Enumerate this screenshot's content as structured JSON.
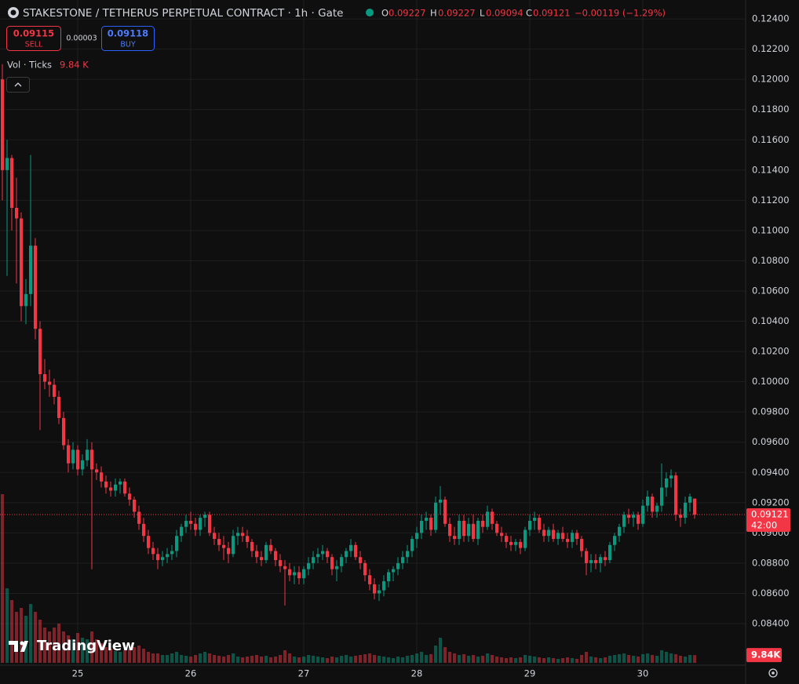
{
  "chart_data": {
    "type": "candlestick",
    "title": "STAKESTONE / TETHERUS PERPETUAL CONTRACT · 1h · Gate",
    "ohlc_labels": [
      "O",
      "H",
      "L",
      "C"
    ],
    "change": "−0.00119 (−1.29%)",
    "sell": {
      "price": 0.09115,
      "label": "SELL"
    },
    "spread": 3e-05,
    "buy": {
      "price": 0.09118,
      "label": "BUY"
    },
    "volume_title": "Vol · Ticks",
    "volume_legend": "9.84 K",
    "volume_axis_label": "9.84K",
    "countdown": "42:00",
    "logo": "TradingView",
    "up_color": "#089981",
    "down_color": "#f23645",
    "grid": true,
    "ylim": [
      0.08125,
      0.12525
    ],
    "yticks": [
      {
        "value": 0.124,
        "label": "0.12400"
      },
      {
        "value": 0.122,
        "label": "0.12200"
      },
      {
        "value": 0.12,
        "label": "0.12000"
      },
      {
        "value": 0.118,
        "label": "0.11800"
      },
      {
        "value": 0.116,
        "label": "0.11600"
      },
      {
        "value": 0.114,
        "label": "0.11400"
      },
      {
        "value": 0.112,
        "label": "0.11200"
      },
      {
        "value": 0.11,
        "label": "0.11000"
      },
      {
        "value": 0.108,
        "label": "0.10800"
      },
      {
        "value": 0.106,
        "label": "0.10600"
      },
      {
        "value": 0.104,
        "label": "0.10400"
      },
      {
        "value": 0.102,
        "label": "0.10200"
      },
      {
        "value": 0.1,
        "label": "0.10000"
      },
      {
        "value": 0.098,
        "label": "0.09800"
      },
      {
        "value": 0.096,
        "label": "0.09600"
      },
      {
        "value": 0.094,
        "label": "0.09400"
      },
      {
        "value": 0.092,
        "label": "0.09200"
      },
      {
        "value": 0.09,
        "label": "0.09000"
      },
      {
        "value": 0.088,
        "label": "0.08800"
      },
      {
        "value": 0.086,
        "label": "0.08600"
      },
      {
        "value": 0.084,
        "label": "0.08400"
      }
    ],
    "volume_ylim": [
      0,
      220
    ],
    "categories": [
      null,
      null,
      null,
      null,
      null,
      null,
      null,
      null,
      null,
      null,
      null,
      null,
      null,
      null,
      null,
      null,
      "25",
      null,
      null,
      null,
      null,
      null,
      null,
      null,
      null,
      null,
      null,
      null,
      null,
      null,
      null,
      null,
      null,
      null,
      null,
      null,
      null,
      null,
      null,
      null,
      "26",
      null,
      null,
      null,
      null,
      null,
      null,
      null,
      null,
      null,
      null,
      null,
      null,
      null,
      null,
      null,
      null,
      null,
      null,
      null,
      null,
      null,
      null,
      null,
      "27",
      null,
      null,
      null,
      null,
      null,
      null,
      null,
      null,
      null,
      null,
      null,
      null,
      null,
      null,
      null,
      null,
      null,
      null,
      null,
      null,
      null,
      null,
      null,
      "28",
      null,
      null,
      null,
      null,
      null,
      null,
      null,
      null,
      null,
      null,
      null,
      null,
      null,
      null,
      null,
      null,
      null,
      null,
      null,
      null,
      null,
      null,
      null,
      "29",
      null,
      null,
      null,
      null,
      null,
      null,
      null,
      null,
      null,
      null,
      null,
      null,
      null,
      null,
      null,
      null,
      null,
      null,
      null,
      null,
      null,
      null,
      null,
      "30",
      null,
      null,
      null,
      null,
      null,
      null,
      null,
      null,
      null,
      null,
      null
    ],
    "candles": [
      [
        0.12,
        0.121,
        0.112,
        0.114
      ],
      [
        0.114,
        0.116,
        0.107,
        0.1148
      ],
      [
        0.1148,
        0.115,
        0.11,
        0.1115
      ],
      [
        0.1115,
        0.1135,
        0.1065,
        0.1108
      ],
      [
        0.1108,
        0.1112,
        0.104,
        0.105
      ],
      [
        0.105,
        0.1068,
        0.1038,
        0.1058
      ],
      [
        0.1058,
        0.115,
        0.105,
        0.109
      ],
      [
        0.109,
        0.1095,
        0.1028,
        0.1035
      ],
      [
        0.1035,
        0.104,
        0.0968,
        0.1005
      ],
      [
        0.1005,
        0.1015,
        0.0995,
        0.1
      ],
      [
        0.1,
        0.1008,
        0.099,
        0.0998
      ],
      [
        0.0998,
        0.1002,
        0.0985,
        0.099
      ],
      [
        0.099,
        0.0994,
        0.0972,
        0.0976
      ],
      [
        0.0976,
        0.098,
        0.0955,
        0.0958
      ],
      [
        0.0958,
        0.0962,
        0.094,
        0.0946
      ],
      [
        0.0946,
        0.096,
        0.0942,
        0.0955
      ],
      [
        0.0955,
        0.0958,
        0.0938,
        0.0942
      ],
      [
        0.0942,
        0.0952,
        0.0938,
        0.0948
      ],
      [
        0.0948,
        0.0962,
        0.0944,
        0.0955
      ],
      [
        0.0955,
        0.096,
        0.0876,
        0.0942
      ],
      [
        0.0942,
        0.0946,
        0.0935,
        0.094
      ],
      [
        0.094,
        0.0944,
        0.093,
        0.0934
      ],
      [
        0.0934,
        0.0938,
        0.0926,
        0.093
      ],
      [
        0.093,
        0.0934,
        0.0924,
        0.0928
      ],
      [
        0.0928,
        0.0936,
        0.0924,
        0.0932
      ],
      [
        0.0932,
        0.0936,
        0.0926,
        0.0934
      ],
      [
        0.0934,
        0.0936,
        0.0924,
        0.0926
      ],
      [
        0.0926,
        0.093,
        0.0918,
        0.0922
      ],
      [
        0.0922,
        0.0924,
        0.091,
        0.0914
      ],
      [
        0.0914,
        0.0918,
        0.0902,
        0.0906
      ],
      [
        0.0906,
        0.091,
        0.0894,
        0.0898
      ],
      [
        0.0898,
        0.0902,
        0.0886,
        0.089
      ],
      [
        0.089,
        0.0894,
        0.0882,
        0.0886
      ],
      [
        0.0886,
        0.089,
        0.0876,
        0.0882
      ],
      [
        0.0882,
        0.0888,
        0.0878,
        0.0884
      ],
      [
        0.0884,
        0.089,
        0.088,
        0.0886
      ],
      [
        0.0886,
        0.0892,
        0.0882,
        0.0888
      ],
      [
        0.0888,
        0.0902,
        0.0884,
        0.0898
      ],
      [
        0.0898,
        0.0906,
        0.0894,
        0.0904
      ],
      [
        0.0904,
        0.0912,
        0.09,
        0.0908
      ],
      [
        0.0908,
        0.0914,
        0.0902,
        0.0906
      ],
      [
        0.0906,
        0.091,
        0.0898,
        0.0902
      ],
      [
        0.0902,
        0.0912,
        0.0898,
        0.091
      ],
      [
        0.091,
        0.0914,
        0.0904,
        0.0912
      ],
      [
        0.0912,
        0.0914,
        0.0898,
        0.09
      ],
      [
        0.09,
        0.0904,
        0.0892,
        0.0896
      ],
      [
        0.0896,
        0.09,
        0.0888,
        0.0892
      ],
      [
        0.0892,
        0.0898,
        0.0882,
        0.089
      ],
      [
        0.089,
        0.0894,
        0.088,
        0.0886
      ],
      [
        0.0886,
        0.0902,
        0.0884,
        0.0898
      ],
      [
        0.0898,
        0.0904,
        0.0892,
        0.09
      ],
      [
        0.09,
        0.0904,
        0.0894,
        0.0898
      ],
      [
        0.0898,
        0.0902,
        0.089,
        0.0894
      ],
      [
        0.0894,
        0.0896,
        0.0884,
        0.0888
      ],
      [
        0.0888,
        0.0892,
        0.088,
        0.0884
      ],
      [
        0.0884,
        0.0888,
        0.0878,
        0.0882
      ],
      [
        0.0882,
        0.0894,
        0.088,
        0.0892
      ],
      [
        0.0892,
        0.0896,
        0.0886,
        0.0888
      ],
      [
        0.0888,
        0.089,
        0.0878,
        0.0882
      ],
      [
        0.0882,
        0.0886,
        0.0874,
        0.0878
      ],
      [
        0.0878,
        0.0882,
        0.0852,
        0.0876
      ],
      [
        0.0876,
        0.088,
        0.0868,
        0.0872
      ],
      [
        0.0872,
        0.0878,
        0.0866,
        0.0874
      ],
      [
        0.0874,
        0.0878,
        0.0866,
        0.087
      ],
      [
        0.087,
        0.0878,
        0.0866,
        0.0876
      ],
      [
        0.0876,
        0.0884,
        0.0872,
        0.088
      ],
      [
        0.088,
        0.0888,
        0.0876,
        0.0884
      ],
      [
        0.0884,
        0.089,
        0.088,
        0.0886
      ],
      [
        0.0886,
        0.0892,
        0.0882,
        0.0888
      ],
      [
        0.0888,
        0.089,
        0.088,
        0.0884
      ],
      [
        0.0884,
        0.0886,
        0.0872,
        0.0876
      ],
      [
        0.0876,
        0.0882,
        0.0868,
        0.0878
      ],
      [
        0.0878,
        0.0886,
        0.0874,
        0.0884
      ],
      [
        0.0884,
        0.089,
        0.088,
        0.0888
      ],
      [
        0.0888,
        0.0896,
        0.0884,
        0.0892
      ],
      [
        0.0892,
        0.0894,
        0.0882,
        0.0884
      ],
      [
        0.0884,
        0.0888,
        0.0876,
        0.088
      ],
      [
        0.088,
        0.0882,
        0.0868,
        0.0872
      ],
      [
        0.0872,
        0.0876,
        0.0862,
        0.0866
      ],
      [
        0.0866,
        0.087,
        0.0856,
        0.086
      ],
      [
        0.086,
        0.0866,
        0.0855,
        0.0862
      ],
      [
        0.0862,
        0.0872,
        0.0858,
        0.0868
      ],
      [
        0.0868,
        0.0876,
        0.0864,
        0.0874
      ],
      [
        0.0874,
        0.0878,
        0.0868,
        0.0876
      ],
      [
        0.0876,
        0.0884,
        0.0872,
        0.088
      ],
      [
        0.088,
        0.0888,
        0.0876,
        0.0884
      ],
      [
        0.0884,
        0.0892,
        0.088,
        0.0888
      ],
      [
        0.0888,
        0.0898,
        0.0884,
        0.0896
      ],
      [
        0.0896,
        0.0904,
        0.089,
        0.09
      ],
      [
        0.09,
        0.0912,
        0.0896,
        0.0908
      ],
      [
        0.0908,
        0.0914,
        0.0902,
        0.091
      ],
      [
        0.091,
        0.0912,
        0.0898,
        0.0902
      ],
      [
        0.0902,
        0.0924,
        0.09,
        0.092
      ],
      [
        0.092,
        0.0931,
        0.0912,
        0.0922
      ],
      [
        0.0922,
        0.0924,
        0.0904,
        0.0906
      ],
      [
        0.0906,
        0.091,
        0.0894,
        0.0898
      ],
      [
        0.0898,
        0.0904,
        0.0892,
        0.0896
      ],
      [
        0.0896,
        0.0912,
        0.0892,
        0.0908
      ],
      [
        0.0908,
        0.0912,
        0.0894,
        0.0898
      ],
      [
        0.0898,
        0.091,
        0.0894,
        0.0906
      ],
      [
        0.0906,
        0.0912,
        0.0894,
        0.0896
      ],
      [
        0.0896,
        0.091,
        0.0892,
        0.0908
      ],
      [
        0.0908,
        0.0912,
        0.09,
        0.0904
      ],
      [
        0.0904,
        0.0918,
        0.0902,
        0.0914
      ],
      [
        0.0914,
        0.0916,
        0.0902,
        0.0906
      ],
      [
        0.0906,
        0.0908,
        0.0898,
        0.09
      ],
      [
        0.09,
        0.0904,
        0.0894,
        0.0898
      ],
      [
        0.0898,
        0.09,
        0.089,
        0.0894
      ],
      [
        0.0894,
        0.0898,
        0.0888,
        0.0892
      ],
      [
        0.0892,
        0.0896,
        0.0888,
        0.0894
      ],
      [
        0.0894,
        0.0896,
        0.0886,
        0.089
      ],
      [
        0.089,
        0.0904,
        0.0888,
        0.0902
      ],
      [
        0.0902,
        0.0912,
        0.0898,
        0.0908
      ],
      [
        0.0908,
        0.0914,
        0.0902,
        0.091
      ],
      [
        0.091,
        0.0912,
        0.09,
        0.0902
      ],
      [
        0.0902,
        0.0906,
        0.0894,
        0.0898
      ],
      [
        0.0898,
        0.0904,
        0.0894,
        0.0902
      ],
      [
        0.0902,
        0.0906,
        0.0894,
        0.0896
      ],
      [
        0.0896,
        0.0902,
        0.0892,
        0.09
      ],
      [
        0.09,
        0.0904,
        0.0894,
        0.0896
      ],
      [
        0.0896,
        0.09,
        0.089,
        0.0894
      ],
      [
        0.0894,
        0.0902,
        0.089,
        0.09
      ],
      [
        0.09,
        0.0902,
        0.0892,
        0.0896
      ],
      [
        0.0896,
        0.0898,
        0.0884,
        0.0888
      ],
      [
        0.0888,
        0.089,
        0.0872,
        0.088
      ],
      [
        0.088,
        0.0886,
        0.0874,
        0.0882
      ],
      [
        0.0882,
        0.0886,
        0.0876,
        0.088
      ],
      [
        0.088,
        0.0886,
        0.0874,
        0.0884
      ],
      [
        0.0884,
        0.0888,
        0.0878,
        0.0882
      ],
      [
        0.0882,
        0.0894,
        0.088,
        0.0892
      ],
      [
        0.0892,
        0.09,
        0.0888,
        0.0898
      ],
      [
        0.0898,
        0.0906,
        0.0894,
        0.0904
      ],
      [
        0.0904,
        0.0914,
        0.09,
        0.0912
      ],
      [
        0.0912,
        0.0916,
        0.0906,
        0.091
      ],
      [
        0.091,
        0.0914,
        0.0904,
        0.0912
      ],
      [
        0.0912,
        0.0914,
        0.0902,
        0.0906
      ],
      [
        0.0906,
        0.0922,
        0.0904,
        0.0918
      ],
      [
        0.0918,
        0.0928,
        0.0914,
        0.0924
      ],
      [
        0.0924,
        0.0926,
        0.091,
        0.0914
      ],
      [
        0.0914,
        0.092,
        0.091,
        0.0918
      ],
      [
        0.0918,
        0.0946,
        0.0914,
        0.093
      ],
      [
        0.093,
        0.094,
        0.0924,
        0.0936
      ],
      [
        0.0936,
        0.0942,
        0.093,
        0.0938
      ],
      [
        0.0938,
        0.094,
        0.0908,
        0.0912
      ],
      [
        0.0912,
        0.0916,
        0.0904,
        0.091
      ],
      [
        0.091,
        0.0924,
        0.0906,
        0.092
      ],
      [
        0.092,
        0.0926,
        0.0914,
        0.0924
      ],
      [
        0.09227,
        0.09227,
        0.09094,
        0.09121
      ]
    ],
    "volume": [
      215,
      95,
      80,
      65,
      70,
      60,
      75,
      65,
      55,
      45,
      40,
      45,
      50,
      40,
      35,
      30,
      38,
      32,
      30,
      40,
      30,
      25,
      20,
      18,
      15,
      14,
      16,
      18,
      20,
      22,
      18,
      14,
      12,
      12,
      10,
      10,
      12,
      14,
      10,
      9,
      8,
      10,
      12,
      14,
      12,
      10,
      9,
      8,
      10,
      12,
      8,
      7,
      8,
      9,
      10,
      8,
      9,
      7,
      8,
      10,
      16,
      12,
      8,
      7,
      8,
      10,
      9,
      8,
      7,
      6,
      8,
      7,
      9,
      10,
      8,
      9,
      10,
      11,
      12,
      10,
      9,
      8,
      7,
      6,
      8,
      7,
      9,
      10,
      12,
      14,
      10,
      11,
      22,
      32,
      20,
      14,
      12,
      10,
      11,
      9,
      10,
      8,
      9,
      12,
      10,
      8,
      7,
      6,
      7,
      6,
      7,
      10,
      9,
      8,
      7,
      6,
      7,
      6,
      5,
      6,
      7,
      6,
      5,
      10,
      14,
      8,
      7,
      6,
      7,
      9,
      10,
      11,
      12,
      10,
      9,
      8,
      11,
      12,
      10,
      9,
      16,
      14,
      12,
      11,
      9,
      8,
      10,
      9.84
    ]
  }
}
